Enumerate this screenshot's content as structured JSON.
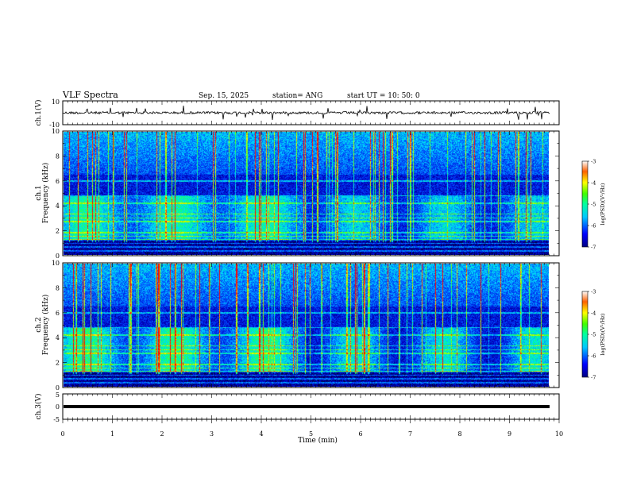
{
  "header": {
    "title": "VLF Spectra",
    "date": "Sep. 15, 2025",
    "station": "station= ANG",
    "start_ut": "start  UT =   10: 50: 0"
  },
  "chart_data": [
    {
      "type": "line",
      "panel": "ch1-waveform",
      "ylabel": "ch.1(V)",
      "ylim": [
        -10,
        10
      ],
      "yticks": [
        "10",
        "-10"
      ],
      "xlim": [
        0,
        10
      ]
    },
    {
      "type": "heatmap",
      "panel": "ch1-spectrogram",
      "ylabel_line1": "ch.1",
      "ylabel_line2": "Frequency  (kHz)",
      "ylim": [
        0,
        10
      ],
      "yticks": [
        "0",
        "2",
        "4",
        "6",
        "8",
        "10"
      ],
      "xlim": [
        0,
        10
      ],
      "colorbar": {
        "label": "log(PSD)(V²/Hz)",
        "range": [
          -7,
          -3
        ],
        "ticks": [
          "-3",
          "-4",
          "-5",
          "-6",
          "-7"
        ]
      }
    },
    {
      "type": "heatmap",
      "panel": "ch2-spectrogram",
      "ylabel_line1": "ch.2",
      "ylabel_line2": "Frequency  (kHz)",
      "ylim": [
        0,
        10
      ],
      "yticks": [
        "0",
        "2",
        "4",
        "6",
        "8",
        "10"
      ],
      "xlim": [
        0,
        10
      ],
      "colorbar": {
        "label": "log(PSD)(V²/Hz)",
        "range": [
          -7,
          -3
        ],
        "ticks": [
          "-3",
          "-4",
          "-5",
          "-6",
          "-7"
        ]
      }
    },
    {
      "type": "line",
      "panel": "ch3-waveform",
      "ylabel": "ch.3(V)",
      "ylim": [
        -5,
        5
      ],
      "yticks": [
        "5",
        "0",
        "-5"
      ],
      "xlim": [
        0,
        10
      ]
    }
  ],
  "x_axis": {
    "label": "Time  (min)",
    "ticks": [
      "0",
      "1",
      "2",
      "3",
      "4",
      "5",
      "6",
      "7",
      "8",
      "9",
      "10"
    ]
  },
  "colors": {
    "background": "#000080",
    "low": "#0000ff",
    "mid": "#00ffff",
    "high": "#00ff00",
    "peak": "#ff0000"
  }
}
